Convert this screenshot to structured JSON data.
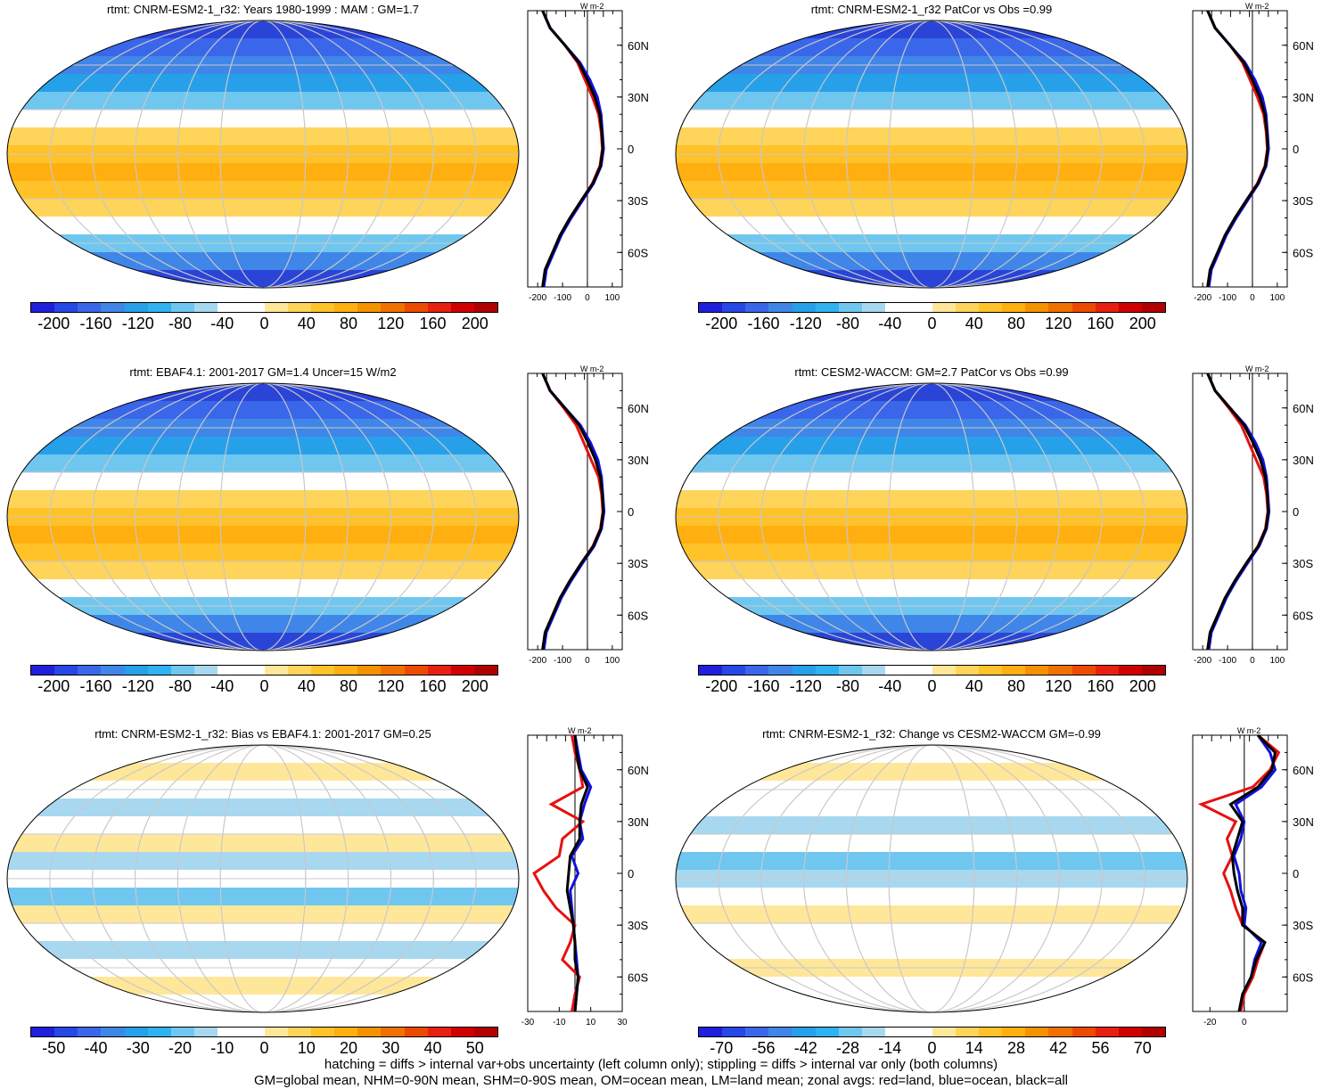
{
  "panels": [
    {
      "title": "rtmt: CNRM-ESM2-1_r32: Years 1980-1999 : MAM : GM=1.7",
      "scheme": "abs",
      "colorbar_labels": [
        "-200",
        "-160",
        "-120",
        "-80",
        "-40",
        "0",
        "40",
        "80",
        "120",
        "160",
        "200"
      ],
      "zonal_axis_labels": [
        "-200",
        "-100",
        "0",
        "100"
      ],
      "zonal_xlim": [
        -240,
        140
      ],
      "zonal_unit": "W m-2",
      "lat_labels": [
        "60N",
        "30N",
        "0",
        "30S",
        "60S"
      ]
    },
    {
      "title": "rtmt: CNRM-ESM2-1_r32 PatCor vs Obs =0.99",
      "scheme": "abs",
      "colorbar_labels": [
        "-200",
        "-160",
        "-120",
        "-80",
        "-40",
        "0",
        "40",
        "80",
        "120",
        "160",
        "200"
      ],
      "zonal_axis_labels": [
        "-200",
        "-100",
        "0",
        "100"
      ],
      "zonal_xlim": [
        -240,
        140
      ],
      "zonal_unit": "W m-2",
      "lat_labels": [
        "60N",
        "30N",
        "0",
        "30S",
        "60S"
      ]
    },
    {
      "title": "rtmt: EBAF4.1: 2001-2017 GM=1.4 Uncer=15 W/m2",
      "scheme": "abs",
      "colorbar_labels": [
        "-200",
        "-160",
        "-120",
        "-80",
        "-40",
        "0",
        "40",
        "80",
        "120",
        "160",
        "200"
      ],
      "zonal_axis_labels": [
        "-200",
        "-100",
        "0",
        "100"
      ],
      "zonal_xlim": [
        -240,
        140
      ],
      "zonal_unit": "W m-2",
      "lat_labels": [
        "60N",
        "30N",
        "0",
        "30S",
        "60S"
      ]
    },
    {
      "title": "rtmt: CESM2-WACCM: GM=2.7 PatCor vs Obs =0.99",
      "scheme": "abs",
      "colorbar_labels": [
        "-200",
        "-160",
        "-120",
        "-80",
        "-40",
        "0",
        "40",
        "80",
        "120",
        "160",
        "200"
      ],
      "zonal_axis_labels": [
        "-200",
        "-100",
        "0",
        "100"
      ],
      "zonal_xlim": [
        -240,
        140
      ],
      "zonal_unit": "W m-2",
      "lat_labels": [
        "60N",
        "30N",
        "0",
        "30S",
        "60S"
      ]
    },
    {
      "title": "rtmt: CNRM-ESM2-1_r32: Bias vs EBAF4.1: 2001-2017 GM=0.25",
      "scheme": "bias",
      "colorbar_labels": [
        "-50",
        "-40",
        "-30",
        "-20",
        "-10",
        "0",
        "10",
        "20",
        "30",
        "40",
        "50"
      ],
      "zonal_axis_labels": [
        "-30",
        "-10",
        "10",
        "30"
      ],
      "zonal_xlim": [
        -30,
        30
      ],
      "zonal_unit": "W m-2",
      "lat_labels": [
        "60N",
        "30N",
        "0",
        "30S",
        "60S"
      ]
    },
    {
      "title": "rtmt: CNRM-ESM2-1_r32: Change vs CESM2-WACCM GM=-0.99",
      "scheme": "change",
      "colorbar_labels": [
        "-70",
        "-56",
        "-42",
        "-28",
        "-14",
        "0",
        "14",
        "28",
        "42",
        "56",
        "70"
      ],
      "zonal_axis_labels": [
        "-20",
        "0"
      ],
      "zonal_xlim": [
        -30,
        25
      ],
      "zonal_unit": "W m-2",
      "lat_labels": [
        "60N",
        "30N",
        "0",
        "30S",
        "60S"
      ]
    }
  ],
  "colors": {
    "palette": [
      "#1f1fdc",
      "#2747e6",
      "#3a67ea",
      "#3f86e8",
      "#27a0ea",
      "#2fb2f0",
      "#6fc7f0",
      "#a7d8f0",
      "#ffffff",
      "#ffffff",
      "#ffe79a",
      "#ffd45a",
      "#ffc228",
      "#ffaf10",
      "#f59200",
      "#f07000",
      "#ec4a00",
      "#e82010",
      "#d00000",
      "#b00000"
    ],
    "line_land": "#e81010",
    "line_ocean": "#1010e0",
    "line_all": "#000000"
  },
  "chart_data": [
    {
      "type": "line",
      "title": "rtmt: CNRM-ESM2-1_r32: Years 1980-1999 : MAM : GM=1.7",
      "lat": [
        -80,
        -70,
        -60,
        -50,
        -40,
        -30,
        -20,
        -10,
        0,
        10,
        20,
        30,
        40,
        50,
        60,
        70,
        80
      ],
      "series": [
        {
          "values": [
            -180,
            -170,
            -140,
            -110,
            -70,
            -25,
            20,
            50,
            60,
            55,
            45,
            20,
            -10,
            -40,
            -90,
            -150,
            -180
          ]
        },
        {
          "values": [
            -175,
            -165,
            -135,
            -105,
            -65,
            -20,
            25,
            55,
            65,
            60,
            55,
            40,
            10,
            -30,
            -90,
            -150,
            -180
          ]
        },
        {
          "values": [
            -180,
            -170,
            -140,
            -110,
            -70,
            -25,
            22,
            52,
            62,
            58,
            50,
            30,
            0,
            -35,
            -90,
            -150,
            -180
          ]
        }
      ]
    },
    {
      "type": "line",
      "title": "rtmt: CNRM-ESM2-1_r32 PatCor vs Obs =0.99",
      "lat": [
        -80,
        -70,
        -60,
        -50,
        -40,
        -30,
        -20,
        -10,
        0,
        10,
        20,
        30,
        40,
        50,
        60,
        70,
        80
      ],
      "series": [
        {
          "values": [
            -180,
            -170,
            -140,
            -110,
            -70,
            -25,
            20,
            50,
            60,
            55,
            45,
            20,
            -10,
            -40,
            -90,
            -150,
            -180
          ]
        },
        {
          "values": [
            -175,
            -165,
            -135,
            -105,
            -65,
            -20,
            25,
            55,
            65,
            60,
            55,
            40,
            10,
            -30,
            -90,
            -150,
            -180
          ]
        },
        {
          "values": [
            -180,
            -170,
            -140,
            -110,
            -70,
            -25,
            22,
            52,
            62,
            58,
            50,
            30,
            0,
            -35,
            -90,
            -150,
            -180
          ]
        }
      ]
    },
    {
      "type": "line",
      "title": "rtmt: EBAF4.1: 2001-2017 GM=1.4 Uncer=15 W/m2",
      "lat": [
        -80,
        -70,
        -60,
        -50,
        -40,
        -30,
        -20,
        -10,
        0,
        10,
        20,
        30,
        40,
        50,
        60,
        70,
        80
      ],
      "series": [
        {
          "values": [
            -180,
            -170,
            -140,
            -110,
            -70,
            -25,
            22,
            52,
            62,
            57,
            45,
            15,
            -15,
            -45,
            -95,
            -150,
            -180
          ]
        },
        {
          "values": [
            -175,
            -165,
            -135,
            -105,
            -65,
            -20,
            27,
            57,
            67,
            62,
            57,
            42,
            12,
            -28,
            -90,
            -150,
            -180
          ]
        },
        {
          "values": [
            -180,
            -170,
            -140,
            -110,
            -70,
            -25,
            24,
            54,
            64,
            60,
            52,
            32,
            2,
            -33,
            -90,
            -150,
            -180
          ]
        }
      ]
    },
    {
      "type": "line",
      "title": "rtmt: CESM2-WACCM: GM=2.7 PatCor vs Obs =0.99",
      "lat": [
        -80,
        -70,
        -60,
        -50,
        -40,
        -30,
        -20,
        -10,
        0,
        10,
        20,
        30,
        40,
        50,
        60,
        70,
        80
      ],
      "series": [
        {
          "values": [
            -180,
            -170,
            -140,
            -110,
            -70,
            -25,
            22,
            52,
            62,
            57,
            45,
            15,
            -15,
            -45,
            -95,
            -150,
            -180
          ]
        },
        {
          "values": [
            -175,
            -165,
            -135,
            -105,
            -65,
            -20,
            27,
            57,
            67,
            62,
            57,
            42,
            12,
            -28,
            -90,
            -150,
            -180
          ]
        },
        {
          "values": [
            -180,
            -170,
            -140,
            -110,
            -70,
            -25,
            24,
            54,
            64,
            60,
            52,
            32,
            2,
            -33,
            -90,
            -150,
            -180
          ]
        }
      ]
    },
    {
      "type": "line",
      "title": "rtmt: CNRM-ESM2-1_r32: Bias vs EBAF4.1: 2001-2017 GM=0.25",
      "lat": [
        -80,
        -70,
        -60,
        -50,
        -40,
        -30,
        -20,
        -10,
        0,
        10,
        20,
        30,
        40,
        50,
        60,
        70,
        80
      ],
      "series": [
        {
          "values": [
            -2,
            0,
            3,
            -8,
            -3,
            0,
            -12,
            -20,
            -26,
            -10,
            -8,
            5,
            -15,
            5,
            3,
            0,
            -2
          ]
        },
        {
          "values": [
            0,
            1,
            2,
            1,
            0,
            -1,
            -2,
            -3,
            2,
            -2,
            5,
            3,
            6,
            10,
            4,
            2,
            0
          ]
        },
        {
          "values": [
            0,
            1,
            2,
            0,
            0,
            -1,
            -3,
            -5,
            -4,
            -3,
            3,
            3,
            4,
            8,
            3,
            1,
            0
          ]
        }
      ]
    },
    {
      "type": "line",
      "title": "rtmt: CNRM-ESM2-1_r32: Change vs CESM2-WACCM GM=-0.99",
      "lat": [
        -80,
        -70,
        -60,
        -50,
        -40,
        -30,
        -20,
        -10,
        0,
        10,
        20,
        30,
        40,
        50,
        60,
        70,
        80
      ],
      "series": [
        {
          "values": [
            -2,
            0,
            5,
            8,
            12,
            -1,
            -5,
            -8,
            -12,
            -7,
            -10,
            -5,
            -25,
            5,
            15,
            20,
            8
          ]
        },
        {
          "values": [
            -3,
            -1,
            4,
            6,
            10,
            0,
            1,
            -2,
            -3,
            -6,
            -2,
            0,
            -5,
            10,
            18,
            15,
            8
          ]
        },
        {
          "values": [
            -3,
            -1,
            4,
            7,
            12,
            -1,
            -1,
            -4,
            -6,
            -7,
            -4,
            -1,
            -8,
            8,
            16,
            18,
            8
          ]
        }
      ]
    }
  ],
  "footer": {
    "line1": "hatching = diffs > internal var+obs uncertainty (left column only); stippling = diffs > internal var only (both columns)",
    "line2": "GM=global mean, NHM=0-90N mean, SHM=0-90S mean, OM=ocean mean, LM=land mean; zonal avgs: red=land, blue=ocean, black=all"
  }
}
